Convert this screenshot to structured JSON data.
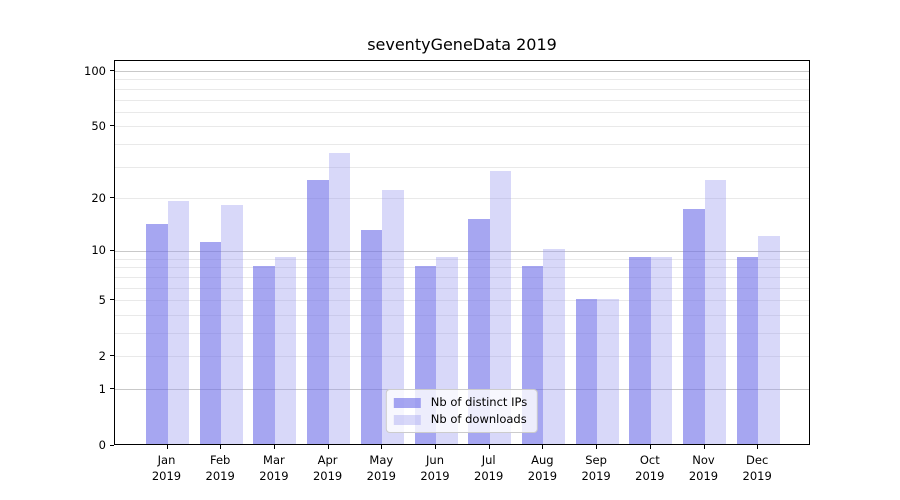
{
  "title": "seventyGeneData 2019",
  "chart_data": {
    "type": "bar",
    "title": "seventyGeneData 2019",
    "categories": [
      "Jan",
      "Feb",
      "Mar",
      "Apr",
      "May",
      "Jun",
      "Jul",
      "Aug",
      "Sep",
      "Oct",
      "Nov",
      "Dec"
    ],
    "category_year": "2019",
    "series": [
      {
        "name": "Nb of distinct IPs",
        "color": "rgba(111,111,232,0.62)",
        "values": [
          14,
          11,
          8,
          25,
          13,
          8,
          15,
          8,
          5,
          9,
          17,
          9
        ]
      },
      {
        "name": "Nb of downloads",
        "color": "rgba(153,153,240,0.38)",
        "values": [
          19,
          18,
          9,
          35,
          22,
          9,
          28,
          10,
          5,
          9,
          25,
          12
        ]
      }
    ],
    "yscale": "log10(1+v)",
    "ylim": [
      0,
      114
    ],
    "yticks": [
      {
        "label": "100",
        "value": 100
      },
      {
        "label": "50",
        "value": 50
      },
      {
        "label": "20",
        "value": 20
      },
      {
        "label": "10",
        "value": 10
      },
      {
        "label": "5",
        "value": 5
      },
      {
        "label": "2",
        "value": 2
      },
      {
        "label": "1",
        "value": 1
      },
      {
        "label": "0",
        "value": 0
      }
    ],
    "gridlines": {
      "major_values": [
        1,
        10,
        100
      ],
      "minor_values": [
        2,
        3,
        4,
        5,
        6,
        7,
        8,
        9,
        20,
        30,
        40,
        50,
        60,
        70,
        80,
        90
      ],
      "major_color": "#c9c9c9",
      "minor_color": "#e9e9e9"
    },
    "legend_position": "bottom-center",
    "grid": "horizontal"
  }
}
